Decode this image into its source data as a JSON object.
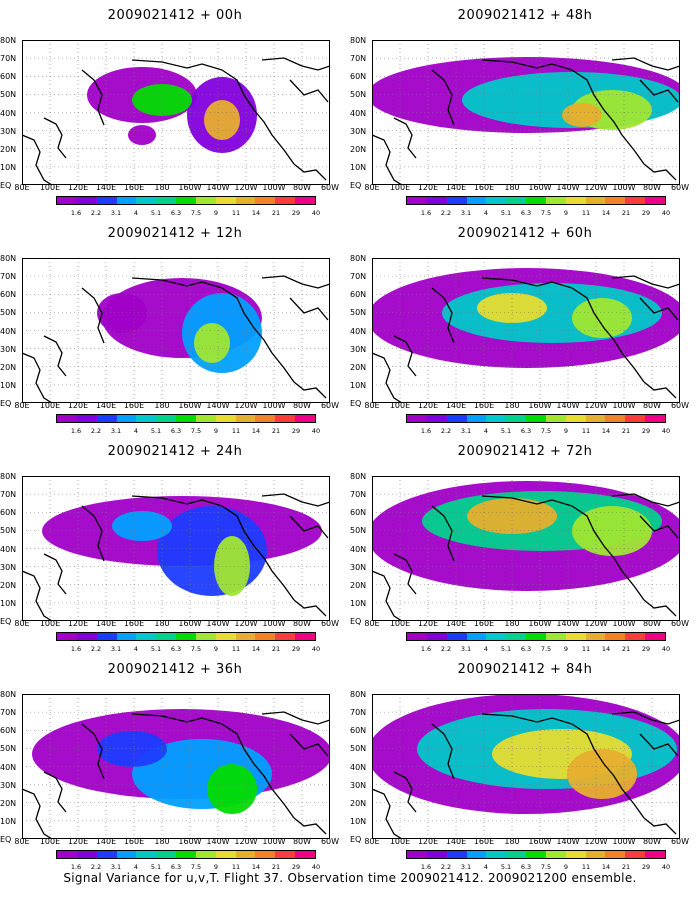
{
  "panels": [
    {
      "title": "2009021412 + 00h"
    },
    {
      "title": "2009021412 + 48h"
    },
    {
      "title": "2009021412 + 12h"
    },
    {
      "title": "2009021412 + 60h"
    },
    {
      "title": "2009021412 + 24h"
    },
    {
      "title": "2009021412 + 72h"
    },
    {
      "title": "2009021412 + 36h"
    },
    {
      "title": "2009021412 + 84h"
    }
  ],
  "lat_labels": [
    "80N",
    "70N",
    "60N",
    "50N",
    "40N",
    "30N",
    "20N",
    "10N",
    "EQ"
  ],
  "lon_labels": [
    "80E",
    "100E",
    "120E",
    "140E",
    "160E",
    "180",
    "160W",
    "140W",
    "120W",
    "100W",
    "80W",
    "60W"
  ],
  "colorbar": {
    "labels": [
      "1.6",
      "2.2",
      "3.1",
      "4",
      "5.1",
      "6.3",
      "7.5",
      "9",
      "11",
      "14",
      "21",
      "29",
      "40"
    ],
    "colors": [
      "#a000c8",
      "#8200dc",
      "#1e3cff",
      "#00a0ff",
      "#00c8c8",
      "#00d28c",
      "#00dc00",
      "#a0e632",
      "#e6dc32",
      "#e6af2d",
      "#f08228",
      "#fa3c3c",
      "#f00082"
    ]
  },
  "caption": "Signal Variance for u,v,T. Flight 37. Observation time 2009021412. 2009021200 ensemble."
}
